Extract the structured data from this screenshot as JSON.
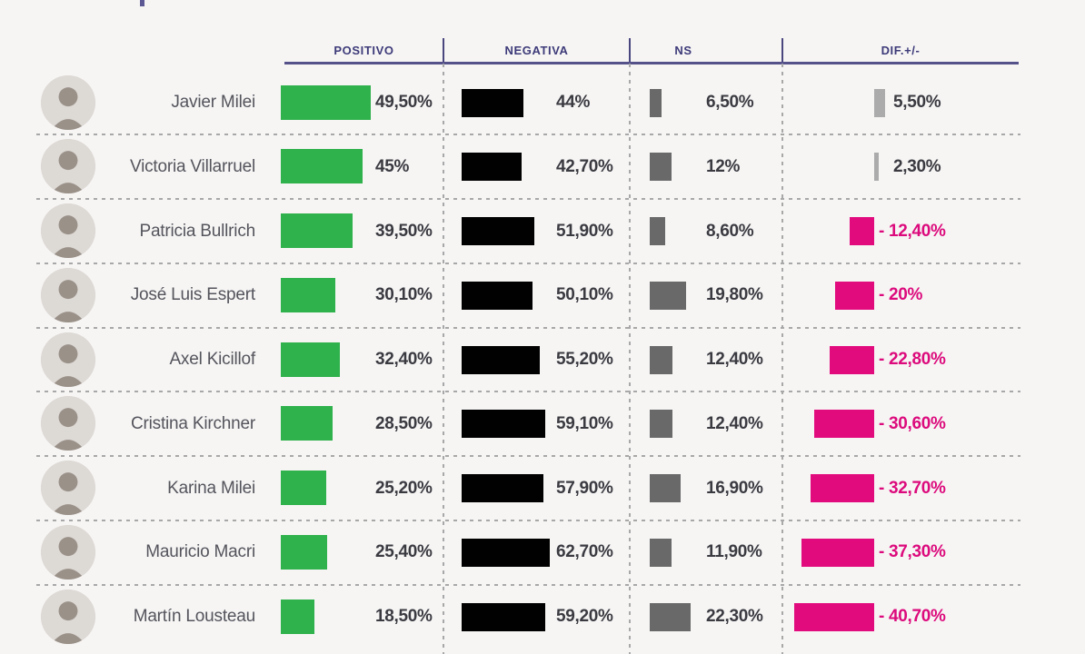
{
  "page": {
    "background": "#f6f5f4"
  },
  "header": {
    "columns": [
      {
        "key": "positivo",
        "label": "POSITIVO"
      },
      {
        "key": "negativa",
        "label": "NEGATIVA"
      },
      {
        "key": "ns",
        "label": "NS"
      },
      {
        "key": "dif",
        "label": "DIF.+/-"
      }
    ]
  },
  "colors": {
    "positivo_bar": "#2fb14b",
    "negativa_bar": "#010101",
    "ns_bar": "#696969",
    "dif_positive_bar": "#ababab",
    "dif_negative_bar": "#e20b7e",
    "dif_negative_text": "#dc0a7c",
    "header_text": "#3e3b79",
    "name_text": "#54545c",
    "value_text": "#3a3a41"
  },
  "chart_data": {
    "type": "bar",
    "orientation": "horizontal",
    "title": "",
    "categories": [
      "Javier Milei",
      "Victoria Villarruel",
      "Patricia Bullrich",
      "José Luis Espert",
      "Axel Kicillof",
      "Cristina Kirchner",
      "Karina Milei",
      "Mauricio Macri",
      "Martín Lousteau"
    ],
    "series": [
      {
        "key": "positivo",
        "name": "POSITIVO",
        "color": "#2fb14b",
        "values": [
          49.5,
          45,
          39.5,
          30.1,
          32.4,
          28.5,
          25.2,
          25.4,
          18.5
        ]
      },
      {
        "key": "negativa",
        "name": "NEGATIVA",
        "color": "#010101",
        "values": [
          44,
          42.7,
          51.9,
          50.1,
          55.2,
          59.1,
          57.9,
          62.7,
          59.2
        ]
      },
      {
        "key": "ns",
        "name": "NS",
        "color": "#696969",
        "values": [
          6.5,
          12,
          8.6,
          19.8,
          12.4,
          12.4,
          16.9,
          11.9,
          22.3
        ]
      },
      {
        "key": "dif",
        "name": "DIF.+/-",
        "color": "#e20b7e",
        "values": [
          5.5,
          2.3,
          -12.4,
          -20,
          -22.8,
          -30.6,
          -32.7,
          -37.3,
          -40.7
        ]
      }
    ],
    "rows": [
      {
        "name": "Javier Milei",
        "positivo_label": "49,50%",
        "negativa_label": "44%",
        "ns_label": "6,50%",
        "dif_label": "5,50%"
      },
      {
        "name": "Victoria Villarruel",
        "positivo_label": "45%",
        "negativa_label": "42,70%",
        "ns_label": "12%",
        "dif_label": "2,30%"
      },
      {
        "name": "Patricia Bullrich",
        "positivo_label": "39,50%",
        "negativa_label": "51,90%",
        "ns_label": "8,60%",
        "dif_label": "- 12,40%"
      },
      {
        "name": "José Luis Espert",
        "positivo_label": "30,10%",
        "negativa_label": "50,10%",
        "ns_label": "19,80%",
        "dif_label": "- 20%"
      },
      {
        "name": "Axel Kicillof",
        "positivo_label": "32,40%",
        "negativa_label": "55,20%",
        "ns_label": "12,40%",
        "dif_label": "- 22,80%"
      },
      {
        "name": "Cristina Kirchner",
        "positivo_label": "28,50%",
        "negativa_label": "59,10%",
        "ns_label": "12,40%",
        "dif_label": "- 30,60%"
      },
      {
        "name": "Karina Milei",
        "positivo_label": "25,20%",
        "negativa_label": "57,90%",
        "ns_label": "16,90%",
        "dif_label": "- 32,70%"
      },
      {
        "name": "Mauricio Macri",
        "positivo_label": "25,40%",
        "negativa_label": "62,70%",
        "ns_label": "11,90%",
        "dif_label": "- 37,30%"
      },
      {
        "name": "Martín Lousteau",
        "positivo_label": "18,50%",
        "negativa_label": "59,20%",
        "ns_label": "22,30%",
        "dif_label": "- 40,70%"
      }
    ]
  }
}
